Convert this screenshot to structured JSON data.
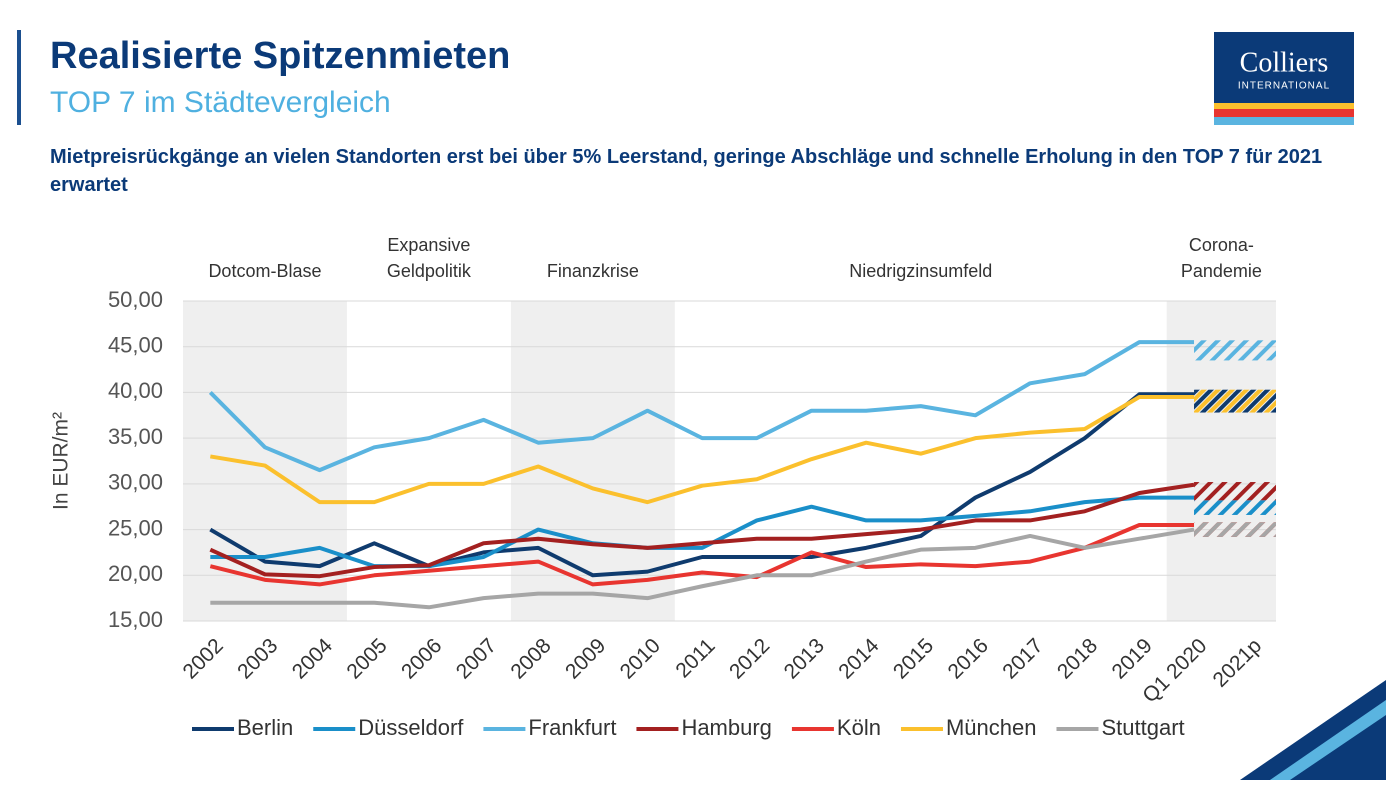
{
  "header": {
    "title": "Realisierte Spitzenmieten",
    "subtitle": "TOP 7 im Städtevergleich",
    "headline": "Mietpreisrückgänge an vielen Standorten erst bei über 5% Leerstand, geringe Abschläge und schnelle Erholung in den TOP 7 für 2021 erwartet",
    "logo": "Colliers",
    "logo_sub": "INTERNATIONAL"
  },
  "chart_data": {
    "type": "line",
    "y_label": "In EUR/m²",
    "categories": [
      "2002",
      "2003",
      "2004",
      "2005",
      "2006",
      "2007",
      "2008",
      "2009",
      "2010",
      "2011",
      "2012",
      "2013",
      "2014",
      "2015",
      "2016",
      "2017",
      "2018",
      "2019",
      "Q1 2020",
      "2021p"
    ],
    "ylim": [
      15,
      50
    ],
    "yticks": [
      {
        "value": 15,
        "label": "15,00"
      },
      {
        "value": 20,
        "label": "20,00"
      },
      {
        "value": 25,
        "label": "25,00"
      },
      {
        "value": 30,
        "label": "30,00"
      },
      {
        "value": 35,
        "label": "35,00"
      },
      {
        "value": 40,
        "label": "40,00"
      },
      {
        "value": 45,
        "label": "45,00"
      },
      {
        "value": 50,
        "label": "50,00"
      }
    ],
    "grid": true,
    "legend": "bottom",
    "periods": [
      {
        "label": [
          "Dotcom-Blase"
        ],
        "start": "2002",
        "end": "2004",
        "shaded": true
      },
      {
        "label": [
          "Expansive",
          "Geldpolitik"
        ],
        "start": "2005",
        "end": "2007",
        "shaded": false
      },
      {
        "label": [
          "Finanzkrise"
        ],
        "start": "2008",
        "end": "2010",
        "shaded": true
      },
      {
        "label": [
          "Niedrigzinsumfeld"
        ],
        "start": "2011",
        "end": "2019",
        "shaded": false
      },
      {
        "label": [
          "Corona-",
          "Pandemie"
        ],
        "start": "Q1 2020",
        "end": "2021p",
        "shaded": true
      }
    ],
    "series": [
      {
        "name": "Berlin",
        "color": "#0f3b6e",
        "values": [
          25,
          21.5,
          21,
          23.5,
          21,
          22.5,
          23,
          20,
          20.4,
          22,
          22,
          22,
          23,
          24.3,
          28.5,
          31.3,
          35,
          39.8,
          39.8,
          null
        ],
        "forecast": [
          37.8,
          40.3
        ]
      },
      {
        "name": "Düsseldorf",
        "color": "#1a8fc9",
        "values": [
          22,
          22,
          23,
          21,
          21,
          22,
          25,
          23.5,
          23,
          23,
          26,
          27.5,
          26,
          26,
          26.5,
          27,
          28,
          28.5,
          28.5,
          null
        ],
        "forecast": [
          26.6,
          28.2
        ]
      },
      {
        "name": "Frankfurt",
        "color": "#5ab4e0",
        "values": [
          40,
          34,
          31.5,
          34,
          35,
          37,
          34.5,
          35,
          38,
          35,
          35,
          38,
          38,
          38.5,
          37.5,
          41,
          42,
          45.5,
          45.5,
          null
        ],
        "forecast": [
          43.5,
          45.7
        ]
      },
      {
        "name": "Hamburg",
        "color": "#a32020",
        "values": [
          22.8,
          20.1,
          19.9,
          20.9,
          21.1,
          23.5,
          24,
          23.4,
          23,
          23.5,
          24,
          24,
          24.5,
          25,
          26,
          26,
          27,
          29,
          29.9,
          null
        ],
        "forecast": [
          28.2,
          30.2
        ]
      },
      {
        "name": "Köln",
        "color": "#e83530",
        "values": [
          21,
          19.5,
          19,
          20,
          20.5,
          21,
          21.5,
          19,
          19.5,
          20.3,
          19.8,
          22.5,
          20.9,
          21.2,
          21,
          21.5,
          23,
          25.5,
          25.5,
          null
        ],
        "forecast": [
          24.2,
          25.8
        ]
      },
      {
        "name": "München",
        "color": "#fbc02d",
        "values": [
          33,
          32,
          28,
          28,
          30,
          30,
          31.9,
          29.5,
          28,
          29.8,
          30.5,
          32.7,
          34.5,
          33.3,
          35,
          35.6,
          36,
          39.5,
          39.5,
          null
        ],
        "forecast": [
          37.8,
          40.3
        ]
      },
      {
        "name": "Stuttgart",
        "color": "#a6a6a6",
        "values": [
          17,
          17,
          17,
          17,
          16.5,
          17.5,
          18,
          18,
          17.5,
          18.8,
          20,
          20,
          21.5,
          22.8,
          23,
          24.3,
          23,
          24,
          25,
          null
        ],
        "forecast": [
          24.2,
          25.8
        ]
      }
    ]
  }
}
